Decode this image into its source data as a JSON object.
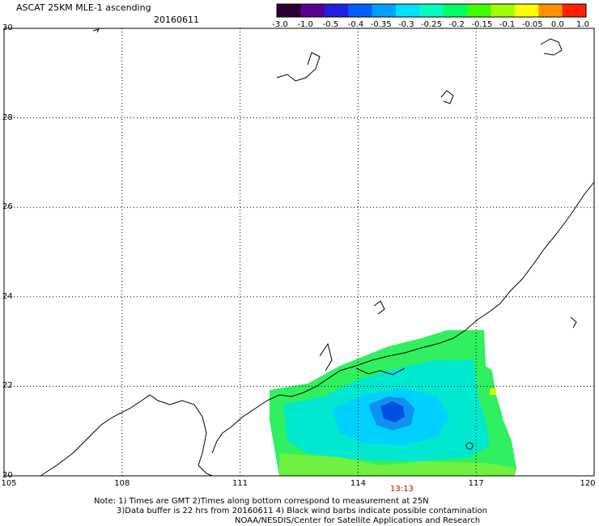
{
  "title": "ASCAT 25KM MLE-1 ascending",
  "date": "20160611",
  "time_label": "13:13",
  "colorbar": {
    "labels": [
      "-3.0",
      "-1.0",
      "-0.5",
      "-0.4",
      "-0.35",
      "-0.3",
      "-0.25",
      "-0.2",
      "-0.15",
      "-0.1",
      "-0.05",
      "0.0",
      "1.0"
    ],
    "colors": [
      "#2a0030",
      "#5a0090",
      "#2020e0",
      "#0060ff",
      "#00a0ff",
      "#00e0ff",
      "#00ffc0",
      "#00ff60",
      "#40ff00",
      "#a0ff00",
      "#ffff00",
      "#ff9000",
      "#ff2000"
    ]
  },
  "axes": {
    "y_labels": [
      "30",
      "28",
      "26",
      "24",
      "22",
      "20"
    ],
    "x_labels": [
      "105",
      "108",
      "111",
      "114",
      "117",
      "120"
    ],
    "lon_range": [
      105,
      120
    ],
    "lat_range": [
      20,
      30
    ]
  },
  "notes": {
    "line1": "Note: 1) Times are GMT 2)Times along bottom correspond to measurement at 25N",
    "line2": "3)Data buffer is 22 hrs from 20160611 4) Black wind barbs indicate possible contamination",
    "line3": "NOAA/NESDIS/Center for Satellite Applications and Research"
  }
}
